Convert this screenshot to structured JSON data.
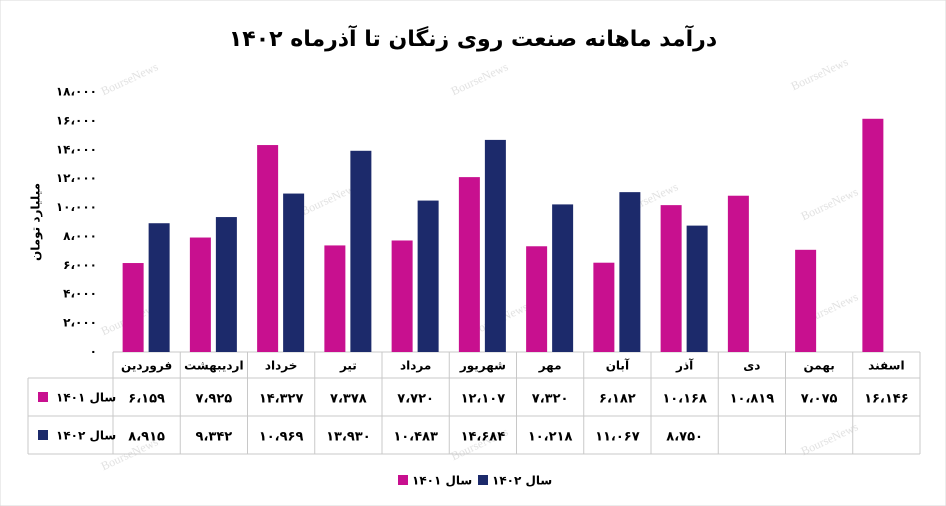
{
  "chart_data": {
    "type": "bar",
    "title": "درآمد ماهانه صنعت روی زنگان تا آذرماه ۱۴۰۲",
    "ylabel": "میلیارد تومان",
    "watermark": "BourseNews",
    "categories": [
      "فروردین",
      "اردیبهشت",
      "خرداد",
      "تیر",
      "مرداد",
      "شهریور",
      "مهر",
      "آبان",
      "آذر",
      "دی",
      "بهمن",
      "اسفند"
    ],
    "series": [
      {
        "name": "سال ۱۴۰۱",
        "color": "#c8108f",
        "values": [
          6159,
          7925,
          14327,
          7378,
          7720,
          12107,
          7320,
          6182,
          10168,
          10819,
          7075,
          16146
        ],
        "value_labels": [
          "۶،۱۵۹",
          "۷،۹۲۵",
          "۱۴،۳۲۷",
          "۷،۳۷۸",
          "۷،۷۲۰",
          "۱۲،۱۰۷",
          "۷،۳۲۰",
          "۶،۱۸۲",
          "۱۰،۱۶۸",
          "۱۰،۸۱۹",
          "۷،۰۷۵",
          "۱۶،۱۴۶"
        ]
      },
      {
        "name": "سال ۱۴۰۲",
        "color": "#1c2a6b",
        "values": [
          8915,
          9342,
          10969,
          13930,
          10483,
          14684,
          10218,
          11067,
          8750,
          null,
          null,
          null
        ],
        "value_labels": [
          "۸،۹۱۵",
          "۹،۳۴۲",
          "۱۰،۹۶۹",
          "۱۳،۹۳۰",
          "۱۰،۴۸۳",
          "۱۴،۶۸۴",
          "۱۰،۲۱۸",
          "۱۱،۰۶۷",
          "۸،۷۵۰",
          null,
          null,
          null
        ]
      }
    ],
    "ylim": [
      0,
      18000
    ],
    "yticks": [
      {
        "value": 0,
        "label": "۰"
      },
      {
        "value": 2000,
        "label": "۲،۰۰۰"
      },
      {
        "value": 4000,
        "label": "۴،۰۰۰"
      },
      {
        "value": 6000,
        "label": "۶،۰۰۰"
      },
      {
        "value": 8000,
        "label": "۸،۰۰۰"
      },
      {
        "value": 10000,
        "label": "۱۰،۰۰۰"
      },
      {
        "value": 12000,
        "label": "۱۲،۰۰۰"
      },
      {
        "value": 14000,
        "label": "۱۴،۰۰۰"
      },
      {
        "value": 16000,
        "label": "۱۶،۰۰۰"
      },
      {
        "value": 18000,
        "label": "۱۸،۰۰۰"
      }
    ],
    "grid": false
  }
}
